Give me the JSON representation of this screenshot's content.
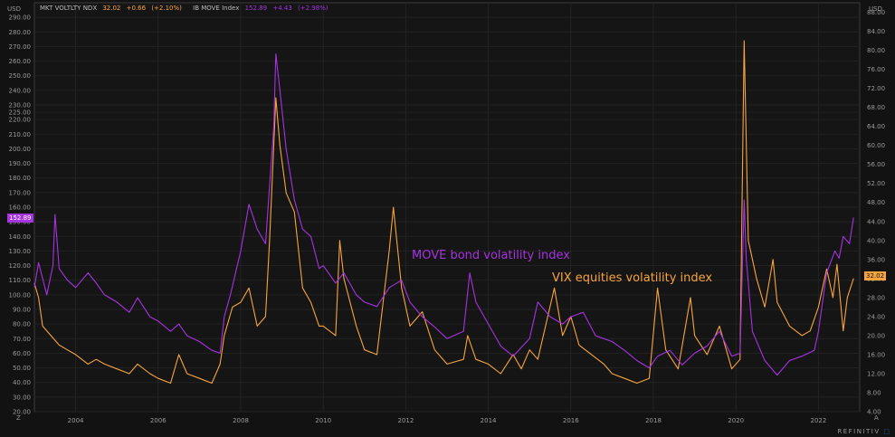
{
  "chart_data": {
    "type": "line",
    "left_axis": {
      "unit": "USD",
      "min": 20,
      "max": 300,
      "ticks": [
        "20.00",
        "30.00",
        "40.00",
        "50.00",
        "60.00",
        "70.00",
        "80.00",
        "90.00",
        "100.00",
        "110.00",
        "120.00",
        "130.00",
        "140.00",
        "150.00",
        "160.00",
        "170.00",
        "180.00",
        "190.00",
        "200.00",
        "210.00",
        "220.00",
        "225.00",
        "230.00",
        "240.00",
        "250.00",
        "260.00",
        "270.00",
        "280.00",
        "290.00"
      ]
    },
    "right_axis": {
      "unit": "USD",
      "min": 4,
      "max": 90,
      "ticks": [
        "4.00",
        "8.00",
        "12.00",
        "16.00",
        "20.00",
        "24.00",
        "28.00",
        "32.00",
        "36.00",
        "40.00",
        "44.00",
        "48.00",
        "52.00",
        "56.00",
        "60.00",
        "64.00",
        "68.00",
        "72.00",
        "76.00",
        "80.00",
        "84.00",
        "88.00"
      ]
    },
    "x_axis": {
      "min": 2003.0,
      "max": 2023.0,
      "ticks": [
        "2004",
        "2006",
        "2008",
        "2010",
        "2012",
        "2014",
        "2016",
        "2018",
        "2020",
        "2022"
      ]
    },
    "grid": true,
    "series": [
      {
        "name": "IB MOVE Index",
        "axis": "left",
        "color": "#a633e0",
        "last_value": "152.89",
        "points": [
          [
            2003.0,
            105
          ],
          [
            2003.1,
            122
          ],
          [
            2003.3,
            100
          ],
          [
            2003.45,
            120
          ],
          [
            2003.5,
            155
          ],
          [
            2003.6,
            118
          ],
          [
            2003.8,
            110
          ],
          [
            2004.0,
            105
          ],
          [
            2004.3,
            115
          ],
          [
            2004.5,
            108
          ],
          [
            2004.7,
            100
          ],
          [
            2005.0,
            95
          ],
          [
            2005.3,
            88
          ],
          [
            2005.5,
            98
          ],
          [
            2005.8,
            85
          ],
          [
            2006.0,
            82
          ],
          [
            2006.3,
            75
          ],
          [
            2006.5,
            80
          ],
          [
            2006.7,
            72
          ],
          [
            2007.0,
            68
          ],
          [
            2007.3,
            62
          ],
          [
            2007.5,
            60
          ],
          [
            2007.6,
            85
          ],
          [
            2007.75,
            100
          ],
          [
            2008.0,
            130
          ],
          [
            2008.2,
            162
          ],
          [
            2008.4,
            145
          ],
          [
            2008.6,
            135
          ],
          [
            2008.8,
            215
          ],
          [
            2008.85,
            265
          ],
          [
            2008.95,
            240
          ],
          [
            2009.1,
            200
          ],
          [
            2009.3,
            165
          ],
          [
            2009.5,
            145
          ],
          [
            2009.7,
            140
          ],
          [
            2009.9,
            118
          ],
          [
            2010.0,
            120
          ],
          [
            2010.3,
            108
          ],
          [
            2010.5,
            115
          ],
          [
            2010.8,
            100
          ],
          [
            2011.0,
            95
          ],
          [
            2011.3,
            92
          ],
          [
            2011.6,
            105
          ],
          [
            2011.9,
            110
          ],
          [
            2012.1,
            95
          ],
          [
            2012.4,
            85
          ],
          [
            2012.7,
            78
          ],
          [
            2013.0,
            70
          ],
          [
            2013.4,
            75
          ],
          [
            2013.55,
            115
          ],
          [
            2013.7,
            95
          ],
          [
            2014.0,
            80
          ],
          [
            2014.3,
            65
          ],
          [
            2014.6,
            58
          ],
          [
            2015.0,
            70
          ],
          [
            2015.2,
            95
          ],
          [
            2015.5,
            85
          ],
          [
            2015.8,
            80
          ],
          [
            2016.0,
            85
          ],
          [
            2016.3,
            88
          ],
          [
            2016.6,
            72
          ],
          [
            2016.8,
            70
          ],
          [
            2017.0,
            68
          ],
          [
            2017.3,
            62
          ],
          [
            2017.6,
            55
          ],
          [
            2017.9,
            50
          ],
          [
            2018.1,
            58
          ],
          [
            2018.4,
            62
          ],
          [
            2018.7,
            52
          ],
          [
            2019.0,
            60
          ],
          [
            2019.3,
            65
          ],
          [
            2019.6,
            75
          ],
          [
            2019.9,
            58
          ],
          [
            2020.1,
            60
          ],
          [
            2020.2,
            165
          ],
          [
            2020.25,
            125
          ],
          [
            2020.4,
            75
          ],
          [
            2020.7,
            55
          ],
          [
            2021.0,
            45
          ],
          [
            2021.3,
            55
          ],
          [
            2021.6,
            58
          ],
          [
            2021.9,
            62
          ],
          [
            2022.0,
            75
          ],
          [
            2022.2,
            115
          ],
          [
            2022.4,
            130
          ],
          [
            2022.5,
            125
          ],
          [
            2022.6,
            140
          ],
          [
            2022.75,
            135
          ],
          [
            2022.85,
            152.89
          ]
        ]
      },
      {
        "name": "MKT VOLTLTY NDX",
        "axis": "right",
        "color": "#f7a43f",
        "last_value": "32.02",
        "points": [
          [
            2003.0,
            31
          ],
          [
            2003.1,
            28
          ],
          [
            2003.2,
            22
          ],
          [
            2003.4,
            20
          ],
          [
            2003.6,
            18
          ],
          [
            2003.8,
            17
          ],
          [
            2004.0,
            16
          ],
          [
            2004.3,
            14
          ],
          [
            2004.5,
            15
          ],
          [
            2004.7,
            14
          ],
          [
            2005.0,
            13
          ],
          [
            2005.3,
            12
          ],
          [
            2005.5,
            14
          ],
          [
            2005.8,
            12
          ],
          [
            2006.0,
            11
          ],
          [
            2006.3,
            10
          ],
          [
            2006.5,
            16
          ],
          [
            2006.7,
            12
          ],
          [
            2007.0,
            11
          ],
          [
            2007.3,
            10
          ],
          [
            2007.5,
            14
          ],
          [
            2007.6,
            20
          ],
          [
            2007.8,
            26
          ],
          [
            2008.0,
            27
          ],
          [
            2008.2,
            30
          ],
          [
            2008.4,
            22
          ],
          [
            2008.6,
            24
          ],
          [
            2008.7,
            40
          ],
          [
            2008.85,
            70
          ],
          [
            2008.95,
            60
          ],
          [
            2009.1,
            50
          ],
          [
            2009.3,
            46
          ],
          [
            2009.5,
            30
          ],
          [
            2009.7,
            27
          ],
          [
            2009.9,
            22
          ],
          [
            2010.0,
            22
          ],
          [
            2010.3,
            20
          ],
          [
            2010.4,
            40
          ],
          [
            2010.5,
            32
          ],
          [
            2010.8,
            22
          ],
          [
            2011.0,
            17
          ],
          [
            2011.3,
            16
          ],
          [
            2011.6,
            38
          ],
          [
            2011.7,
            47
          ],
          [
            2011.9,
            30
          ],
          [
            2012.1,
            22
          ],
          [
            2012.4,
            25
          ],
          [
            2012.7,
            17
          ],
          [
            2013.0,
            14
          ],
          [
            2013.4,
            15
          ],
          [
            2013.5,
            20
          ],
          [
            2013.7,
            15
          ],
          [
            2014.0,
            14
          ],
          [
            2014.3,
            12
          ],
          [
            2014.6,
            16
          ],
          [
            2014.8,
            13
          ],
          [
            2015.0,
            17
          ],
          [
            2015.2,
            15
          ],
          [
            2015.6,
            30
          ],
          [
            2015.8,
            20
          ],
          [
            2016.0,
            24
          ],
          [
            2016.2,
            18
          ],
          [
            2016.5,
            16
          ],
          [
            2016.8,
            14
          ],
          [
            2017.0,
            12
          ],
          [
            2017.3,
            11
          ],
          [
            2017.6,
            10
          ],
          [
            2017.9,
            11
          ],
          [
            2018.1,
            30
          ],
          [
            2018.3,
            17
          ],
          [
            2018.6,
            13
          ],
          [
            2018.9,
            28
          ],
          [
            2019.0,
            20
          ],
          [
            2019.3,
            16
          ],
          [
            2019.6,
            22
          ],
          [
            2019.9,
            13
          ],
          [
            2020.1,
            15
          ],
          [
            2020.2,
            82
          ],
          [
            2020.3,
            40
          ],
          [
            2020.5,
            32
          ],
          [
            2020.7,
            26
          ],
          [
            2020.9,
            36
          ],
          [
            2021.0,
            27
          ],
          [
            2021.3,
            22
          ],
          [
            2021.6,
            20
          ],
          [
            2021.8,
            21
          ],
          [
            2022.0,
            26
          ],
          [
            2022.2,
            34
          ],
          [
            2022.35,
            28
          ],
          [
            2022.45,
            35
          ],
          [
            2022.6,
            21
          ],
          [
            2022.7,
            28
          ],
          [
            2022.85,
            32.02
          ]
        ]
      }
    ],
    "legend": [
      {
        "name": "MKT VOLTLTY NDX",
        "value": "32.02",
        "change": "+0.66",
        "pct": "(+2.10%)"
      },
      {
        "name": "IB MOVE Index",
        "value": "152.89",
        "change": "+4.43",
        "pct": "(+2.98%)"
      }
    ],
    "annotations": [
      {
        "text": "MOVE bond volatility index",
        "color": "#a633e0"
      },
      {
        "text": "VIX equities volatility index",
        "color": "#f7a43f"
      }
    ]
  },
  "ui": {
    "left_unit": "USD",
    "right_unit": "USD",
    "z_label": "Z",
    "a_label": "A",
    "brand": "REFINITIV"
  }
}
